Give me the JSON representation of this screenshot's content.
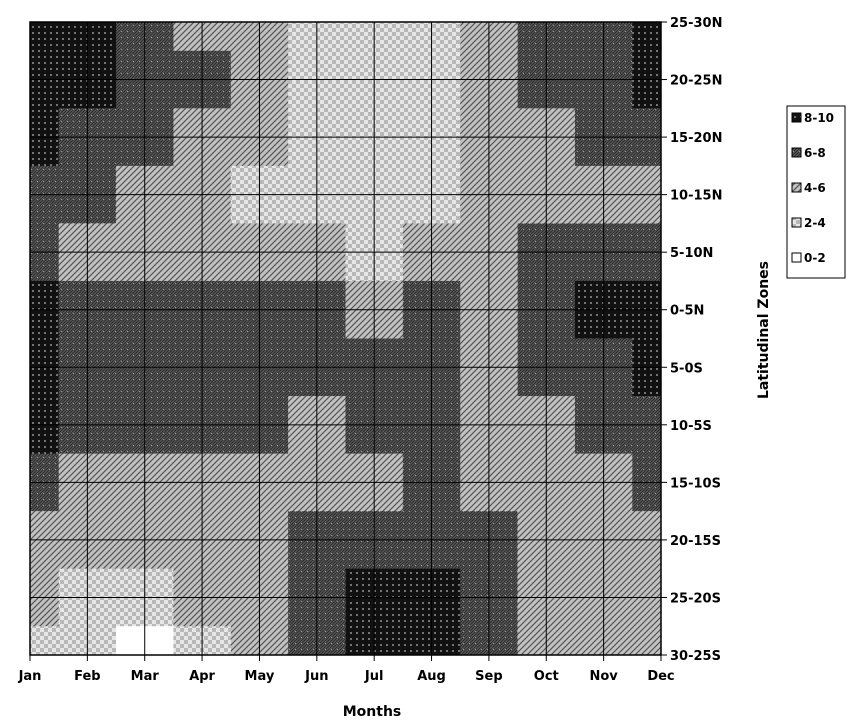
{
  "chart_data": {
    "type": "heatmap",
    "subtype": "filled contour",
    "xlabel": "Months",
    "ylabel": "Latitudinal Zones",
    "x_categories": [
      "Jan",
      "Feb",
      "Mar",
      "Apr",
      "May",
      "Jun",
      "Jul",
      "Aug",
      "Sep",
      "Oct",
      "Nov",
      "Dec"
    ],
    "y_categories": [
      "25-30N",
      "20-25N",
      "15-20N",
      "10-15N",
      "5-10N",
      "0-5N",
      "5-0S",
      "10-5S",
      "15-10S",
      "20-15S",
      "25-20S",
      "30-25S"
    ],
    "legend": [
      {
        "label": "8-10",
        "color": "#111111",
        "pattern": "dots"
      },
      {
        "label": "6-8",
        "color": "#555555",
        "pattern": "crosshatch"
      },
      {
        "label": "4-6",
        "color": "#9a9a9a",
        "pattern": "diagonal"
      },
      {
        "label": "2-4",
        "color": "#cfcfcf",
        "pattern": "checker"
      },
      {
        "label": "0-2",
        "color": "#ffffff",
        "pattern": "none"
      }
    ],
    "legend_position": "right",
    "grid": true,
    "values": [
      [
        9,
        9,
        7,
        5,
        4,
        3,
        3,
        3,
        4,
        6,
        7,
        9
      ],
      [
        9,
        8,
        7,
        6,
        4,
        3,
        3,
        3,
        4,
        6,
        7,
        8
      ],
      [
        8,
        7,
        6,
        5,
        4,
        3,
        3,
        3,
        4,
        5,
        6,
        7
      ],
      [
        7,
        6,
        5,
        5,
        3,
        3,
        3,
        3,
        4,
        5,
        5,
        5
      ],
      [
        6,
        5,
        5,
        5,
        4,
        4,
        3,
        4,
        5,
        6,
        6,
        6
      ],
      [
        8,
        7,
        6,
        6,
        6,
        6,
        5,
        6,
        5,
        6,
        8,
        9
      ],
      [
        9,
        7,
        6,
        6,
        6,
        6,
        7,
        6,
        5,
        6,
        7,
        9
      ],
      [
        8,
        6,
        6,
        6,
        6,
        5,
        6,
        6,
        5,
        5,
        6,
        7
      ],
      [
        6,
        5,
        5,
        5,
        5,
        5,
        5,
        6,
        5,
        5,
        5,
        6
      ],
      [
        5,
        4,
        4,
        4,
        4,
        6,
        7,
        7,
        6,
        5,
        5,
        5
      ],
      [
        4,
        3,
        3,
        4,
        5,
        7,
        9,
        9,
        6,
        5,
        5,
        5
      ],
      [
        3,
        3,
        1,
        3,
        5,
        7,
        9,
        9,
        6,
        5,
        5,
        5
      ]
    ]
  }
}
